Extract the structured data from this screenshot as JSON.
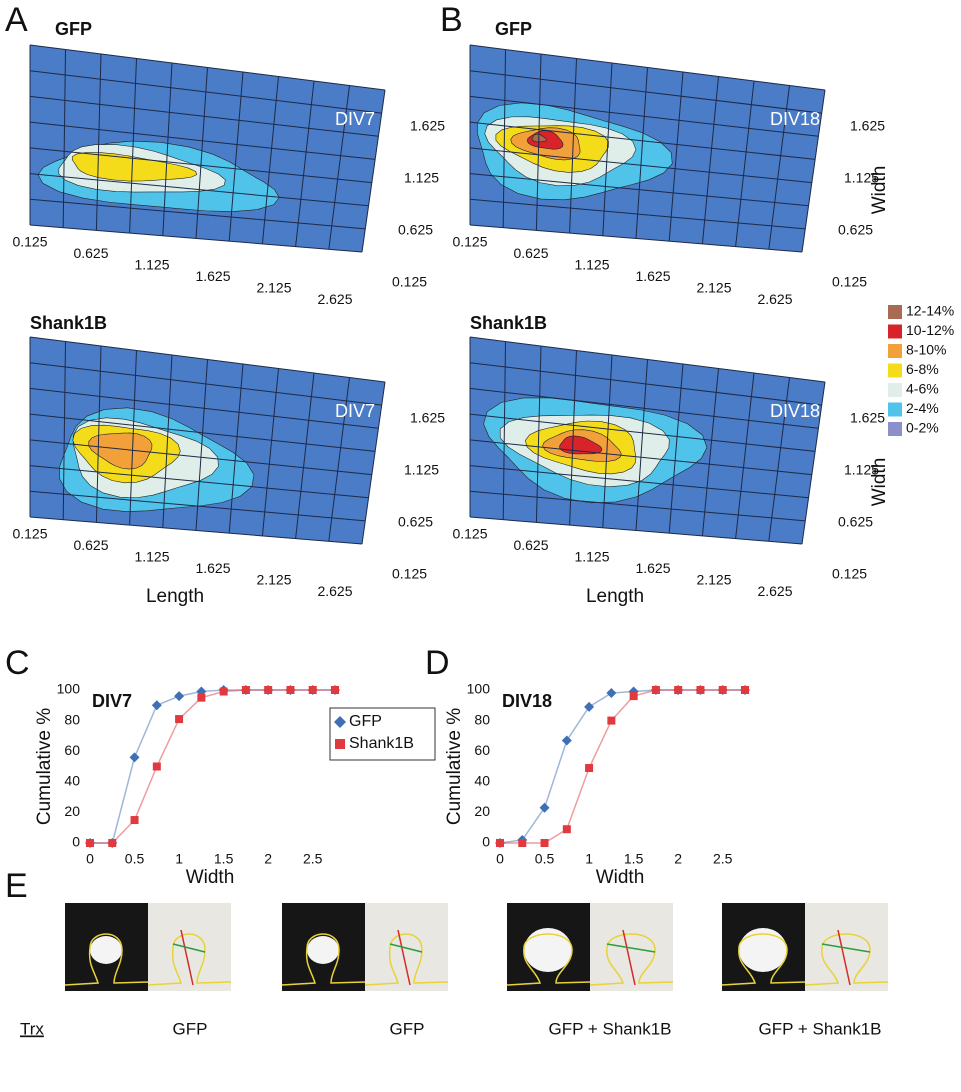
{
  "figure": {
    "panel_labels": [
      "A",
      "B",
      "C",
      "D",
      "E"
    ],
    "contour_panels": [
      {
        "title": "GFP",
        "label": "DIV7"
      },
      {
        "title": "Shank1B",
        "label": "DIV7"
      },
      {
        "title": "GFP",
        "label": "DIV18"
      },
      {
        "title": "Shank1B",
        "label": "DIV18"
      }
    ],
    "length_ticks": [
      0.125,
      0.625,
      1.125,
      1.625,
      2.125,
      2.625
    ],
    "width_ticks": [
      0.125,
      0.625,
      1.125,
      1.625
    ],
    "length_label": "Length",
    "width_label": "Width",
    "legend": [
      {
        "label": "12-14%",
        "color": "#a86a52"
      },
      {
        "label": "10-12%",
        "color": "#d8232a"
      },
      {
        "label": "8-10%",
        "color": "#f2a13a"
      },
      {
        "label": "6-8%",
        "color": "#f5dc1b"
      },
      {
        "label": "4-6%",
        "color": "#dfeee8"
      },
      {
        "label": "2-4%",
        "color": "#4fc3ea"
      },
      {
        "label": "0-2%",
        "color": "#8c8fca"
      }
    ]
  },
  "chart_data": [
    {
      "type": "line",
      "annotation": "DIV7",
      "xlabel": "Width",
      "ylabel": "Cumulative %",
      "x": [
        0,
        0.25,
        0.5,
        0.75,
        1,
        1.25,
        1.5,
        1.75,
        2,
        2.25,
        2.5,
        2.75
      ],
      "series": [
        {
          "name": "GFP",
          "color": "#3f6fb5",
          "marker": "diamond",
          "values": [
            0,
            0,
            56,
            90,
            96,
            99,
            100,
            100,
            100,
            100,
            100,
            100
          ]
        },
        {
          "name": "Shank1B",
          "color": "#e0393e",
          "marker": "square",
          "values": [
            0,
            0,
            15,
            50,
            81,
            95,
            99,
            100,
            100,
            100,
            100,
            100
          ]
        }
      ],
      "xlim": [
        0,
        2.75
      ],
      "ylim": [
        0,
        100
      ],
      "xticks": [
        0,
        0.5,
        1,
        1.5,
        2,
        2.5
      ],
      "yticks": [
        0,
        20,
        40,
        60,
        80,
        100
      ],
      "legend": true
    },
    {
      "type": "line",
      "annotation": "DIV18",
      "xlabel": "Width",
      "ylabel": "Cumulative %",
      "x": [
        0,
        0.25,
        0.5,
        0.75,
        1,
        1.25,
        1.5,
        1.75,
        2,
        2.25,
        2.5,
        2.75
      ],
      "series": [
        {
          "name": "GFP",
          "color": "#3f6fb5",
          "marker": "diamond",
          "values": [
            0,
            2,
            23,
            67,
            89,
            98,
            99,
            100,
            100,
            100,
            100,
            100
          ]
        },
        {
          "name": "Shank1B",
          "color": "#e0393e",
          "marker": "square",
          "values": [
            0,
            0,
            0,
            9,
            49,
            80,
            96,
            100,
            100,
            100,
            100,
            100
          ]
        }
      ],
      "xlim": [
        0,
        2.75
      ],
      "ylim": [
        0,
        100
      ],
      "xticks": [
        0,
        0.5,
        1,
        1.5,
        2,
        2.5
      ],
      "yticks": [
        0,
        20,
        40,
        60,
        80,
        100
      ],
      "legend": false
    }
  ],
  "panel_e": {
    "row_label": "Trx",
    "captions": [
      "GFP",
      "GFP",
      "GFP + Shank1B",
      "GFP + Shank1B"
    ]
  }
}
